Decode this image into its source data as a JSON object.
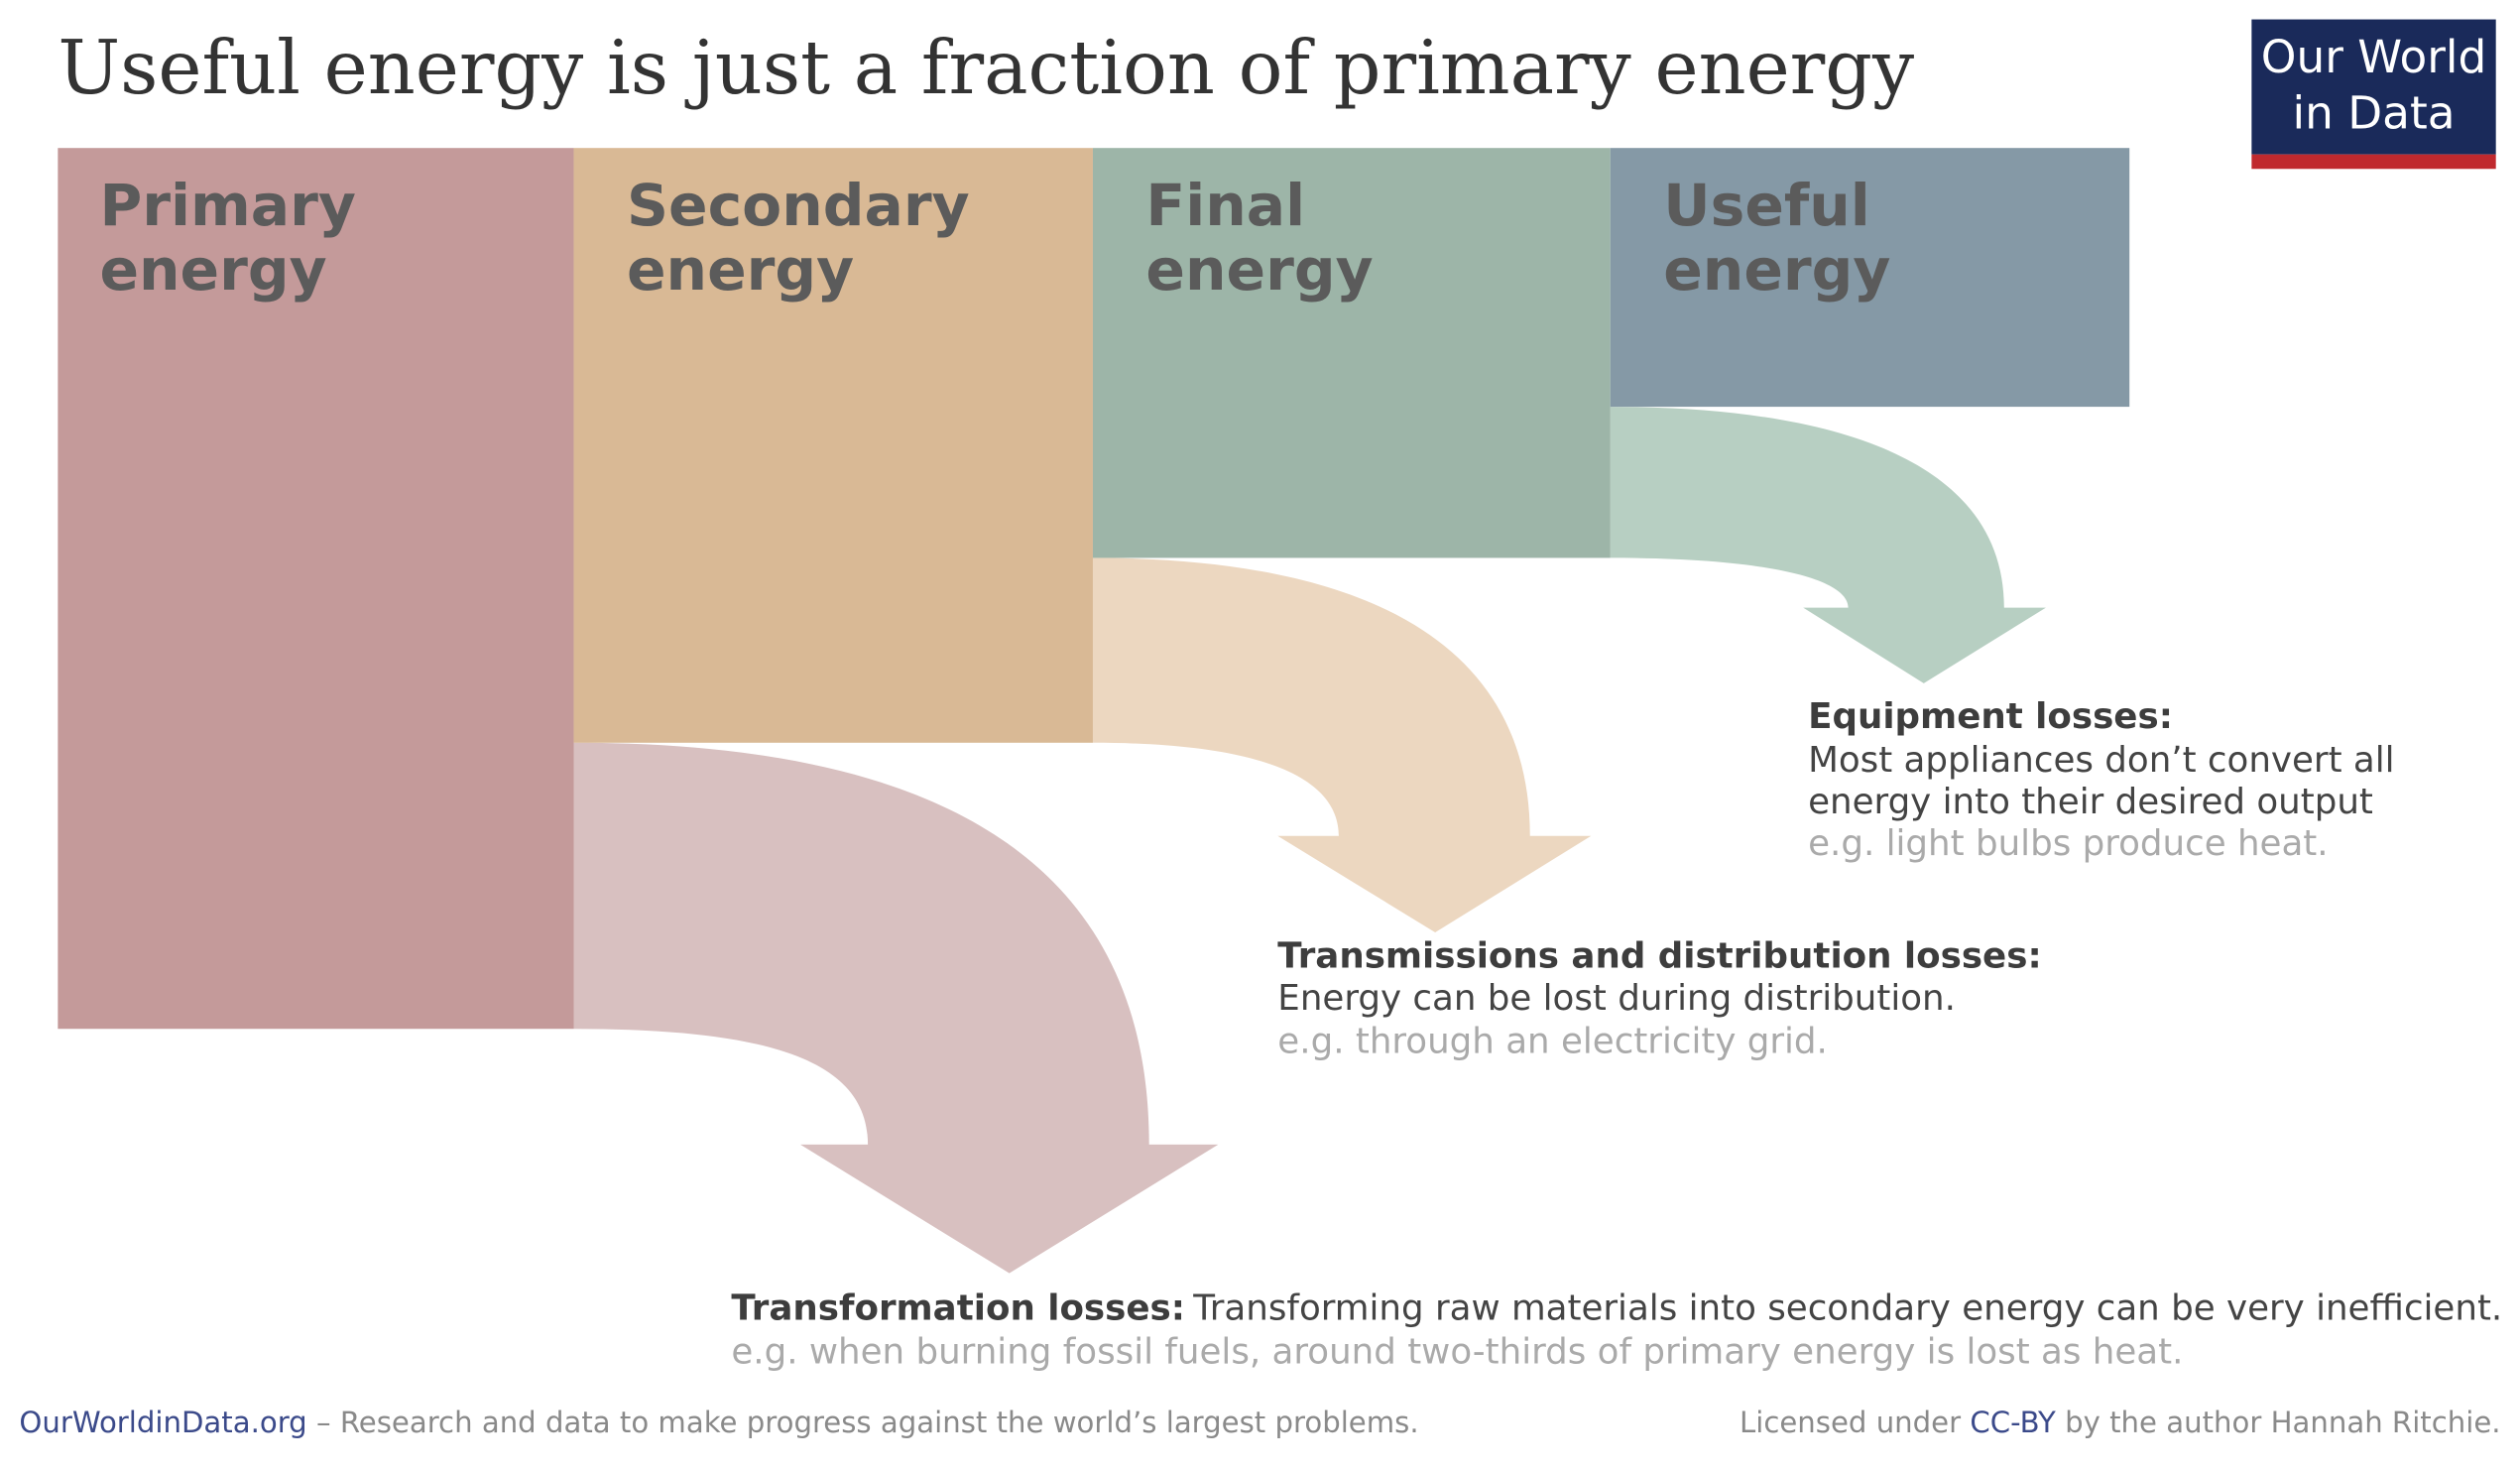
{
  "title": "Useful energy is just a fraction of primary energy",
  "logo": {
    "lines": [
      "Our World",
      "in Data"
    ]
  },
  "stages": [
    {
      "label_lines": [
        "Primary",
        "energy"
      ]
    },
    {
      "label_lines": [
        "Secondary",
        "energy"
      ]
    },
    {
      "label_lines": [
        "Final",
        "energy"
      ]
    },
    {
      "label_lines": [
        "Useful",
        "energy"
      ]
    }
  ],
  "losses": {
    "equipment": {
      "heading": "Equipment losses:",
      "description_lines": [
        "Most appliances don’t convert all",
        "energy into their desired output"
      ],
      "example": "e.g. light bulbs produce heat."
    },
    "transmission": {
      "heading": "Transmissions and distribution losses:",
      "description": "Energy can be lost during distribution.",
      "example": "e.g. through an electricity grid."
    },
    "transformation": {
      "heading": "Transformation losses:",
      "description": "Transforming raw materials into secondary energy can be very inefficient.",
      "example": "e.g. when burning fossil fuels, around two-thirds of primary energy is lost as heat."
    }
  },
  "footer": {
    "site": "OurWorldinData.org",
    "tagline": "– Research and data to make progress against the world’s largest problems.",
    "license_prefix": "Licensed under",
    "license": "CC-BY",
    "license_suffix": "by the author Hannah Ritchie."
  }
}
